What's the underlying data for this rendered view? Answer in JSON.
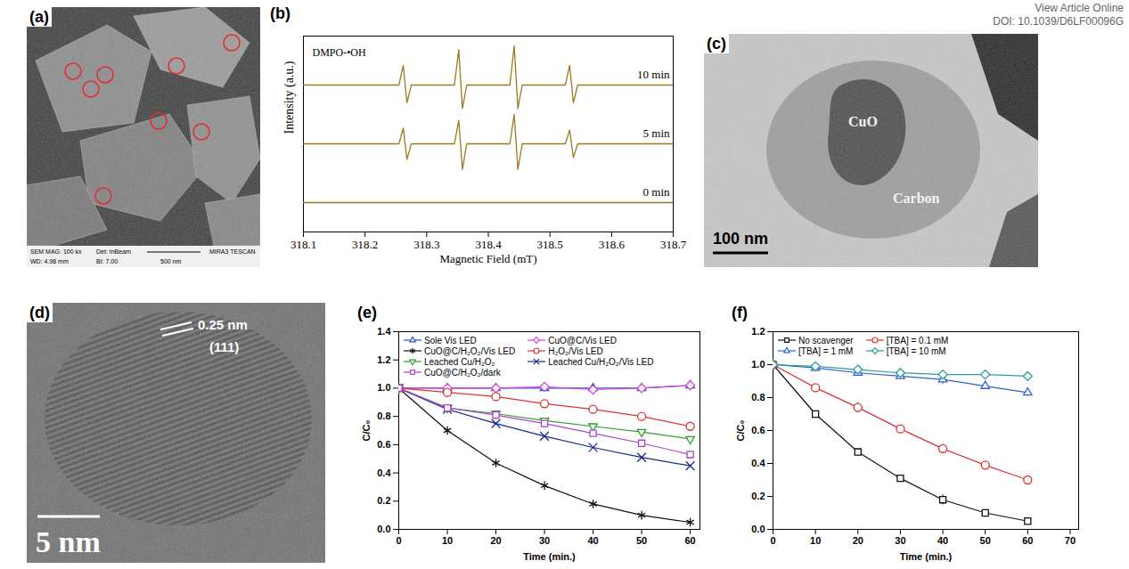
{
  "header": {
    "lines": [
      "View Article Online",
      "DOI: 10.1039/D6LF00096G"
    ]
  },
  "chart_data": [
    {
      "type": "image",
      "label": "(a)",
      "info": [
        "SEM MAG: 100 kx",
        "Det: InBeam",
        "MIRA3 TESCAN",
        "WD: 4.98 mm",
        "BI: 7.00"
      ],
      "scale_bar": "500 nm"
    },
    {
      "type": "line",
      "label": "(b)",
      "title": "DMPO-•OH",
      "xlabel": "Magnetic Field (mT)",
      "ylabel": "Intensity (a.u.)",
      "color": "#9c7a1e",
      "tick_labels": "x",
      "xlim": [
        318.1,
        318.7
      ],
      "xticks": [
        318.1,
        318.2,
        318.3,
        318.4,
        318.5,
        318.6,
        318.7
      ],
      "ylim": [
        0,
        10
      ],
      "x": [
        318.1,
        318.255,
        318.262,
        318.268,
        318.275,
        318.345,
        318.352,
        318.358,
        318.365,
        318.435,
        318.442,
        318.448,
        318.455,
        318.525,
        318.532,
        318.538,
        318.545,
        318.7
      ],
      "series": [
        {
          "name": "10 min",
          "values": [
            7.5,
            7.5,
            8.5,
            6.6,
            7.5,
            7.5,
            9.3,
            6.3,
            7.5,
            7.5,
            9.5,
            6.3,
            7.5,
            7.5,
            8.5,
            6.6,
            7.5,
            7.5
          ]
        },
        {
          "name": "5 min",
          "values": [
            4.5,
            4.5,
            5.3,
            3.7,
            4.5,
            4.5,
            5.7,
            3.2,
            4.5,
            4.5,
            6.0,
            3.2,
            4.5,
            4.5,
            5.2,
            3.8,
            4.5,
            4.5
          ]
        },
        {
          "name": "0 min",
          "values": [
            1.5,
            1.5,
            1.5,
            1.5,
            1.5,
            1.5,
            1.5,
            1.5,
            1.5,
            1.5,
            1.5,
            1.5,
            1.5,
            1.5,
            1.5,
            1.5,
            1.5,
            1.5
          ]
        }
      ]
    },
    {
      "type": "image",
      "label": "(c)",
      "annotations": [
        "CuO",
        "Carbon"
      ],
      "scale_bar": "100 nm"
    },
    {
      "type": "image",
      "label": "(d)",
      "annotations": [
        "0.25 nm",
        "(111)"
      ],
      "scale_bar": "5 nm"
    },
    {
      "type": "line",
      "label": "(e)",
      "xlabel": "Time (min.)",
      "ylabel": "C/C₀",
      "legend": "top",
      "xlim": [
        0,
        62
      ],
      "xticks": [
        0,
        10,
        20,
        30,
        40,
        50,
        60
      ],
      "ylim": [
        0,
        1.4
      ],
      "yticks": [
        {
          "value": 0,
          "label": "0.0"
        },
        0.2,
        0.4,
        0.6,
        0.8,
        {
          "value": 1,
          "label": "1.0"
        },
        1.2,
        1.4
      ],
      "x": [
        0,
        10,
        20,
        30,
        40,
        50,
        60
      ],
      "series": [
        {
          "name": "Sole Vis LED",
          "color": "#2950d0",
          "marker": "triangle-up",
          "values": [
            1.0,
            1.0,
            1.0,
            1.0,
            1.0,
            1.0,
            1.02
          ]
        },
        {
          "name": "CuO@C/Vis LED",
          "color": "#e040e0",
          "marker": "diamond",
          "values": [
            1.0,
            1.0,
            1.0,
            1.01,
            0.99,
            1.0,
            1.02
          ]
        },
        {
          "name": "CuO@C/H₂O₂/Vis LED",
          "color": "#111111",
          "marker": "asterisk",
          "values": [
            1.0,
            0.7,
            0.47,
            0.31,
            0.18,
            0.1,
            0.05
          ]
        },
        {
          "name": "H₂O₂/Vis LED",
          "color": "#e03030",
          "marker": "circle",
          "values": [
            1.0,
            0.97,
            0.94,
            0.89,
            0.85,
            0.8,
            0.73
          ]
        },
        {
          "name": "Leached Cu/H₂O₂",
          "color": "#2ca02c",
          "marker": "triangle-down",
          "values": [
            1.0,
            0.86,
            0.82,
            0.77,
            0.73,
            0.69,
            0.64
          ]
        },
        {
          "name": "Leached Cu/H₂O₂/Vis LED",
          "color": "#1a2a8c",
          "marker": "x",
          "values": [
            1.0,
            0.85,
            0.75,
            0.66,
            0.58,
            0.51,
            0.45
          ]
        },
        {
          "name": "CuO@C/H₂O₂/dark",
          "color": "#b040d0",
          "marker": "square",
          "values": [
            1.0,
            0.86,
            0.81,
            0.75,
            0.68,
            0.61,
            0.53
          ]
        }
      ]
    },
    {
      "type": "line",
      "label": "(f)",
      "xlabel": "Time (min.)",
      "ylabel": "C/C₀",
      "legend": "top",
      "xlim": [
        0,
        72
      ],
      "xticks": [
        0,
        10,
        20,
        30,
        40,
        50,
        60,
        70
      ],
      "ylim": [
        0,
        1.2
      ],
      "yticks": [
        {
          "value": 0,
          "label": "0.0"
        },
        0.2,
        0.4,
        0.6,
        0.8,
        {
          "value": 1,
          "label": "1.0"
        },
        1.2
      ],
      "x": [
        0,
        10,
        20,
        30,
        40,
        50,
        60
      ],
      "series": [
        {
          "name": "No scavenger",
          "color": "#111111",
          "marker": "square",
          "values": [
            1.0,
            0.7,
            0.47,
            0.31,
            0.18,
            0.1,
            0.05
          ],
          "errors": [
            0,
            0.01,
            0.015,
            0.015,
            0.03,
            0.01,
            0.01
          ]
        },
        {
          "name": "[TBA] = 0.1 mM",
          "color": "#e03030",
          "marker": "circle",
          "values": [
            1.0,
            0.86,
            0.74,
            0.61,
            0.49,
            0.39,
            0.3
          ],
          "errors": [
            0,
            0.02,
            0.03,
            0.02,
            0.02,
            0.01,
            0.02
          ]
        },
        {
          "name": "[TBA] = 1 mM",
          "color": "#3060d0",
          "marker": "triangle-up",
          "values": [
            1.0,
            0.98,
            0.95,
            0.93,
            0.91,
            0.87,
            0.83
          ],
          "errors": [
            0,
            0.02,
            0.02,
            0.02,
            0.03,
            0.02,
            0.02
          ]
        },
        {
          "name": "[TBA] = 10 mM",
          "color": "#2a9d9d",
          "marker": "diamond",
          "values": [
            1.0,
            0.99,
            0.97,
            0.95,
            0.94,
            0.94,
            0.93
          ],
          "errors": [
            0,
            0.01,
            0.02,
            0.01,
            0.02,
            0.02,
            0.02
          ]
        }
      ]
    }
  ]
}
